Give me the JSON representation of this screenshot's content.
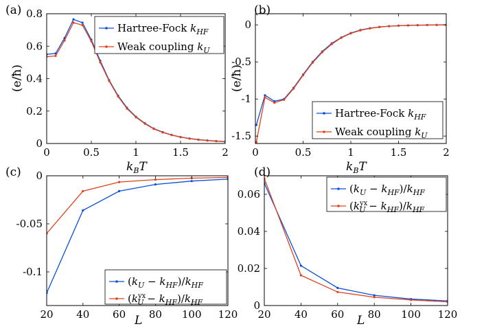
{
  "colors": {
    "blue": "#0a4fd6",
    "red": "#e0401a"
  },
  "chart_data": [
    {
      "id": "a",
      "type": "line",
      "panel_label": "(a)",
      "xlabel": "k_B T",
      "ylabel": "(e/ħ)",
      "xlim": [
        0,
        2
      ],
      "ylim": [
        0,
        0.8
      ],
      "xticks": [
        0,
        0.5,
        1,
        1.5,
        2
      ],
      "xtick_labels": [
        "0",
        "0.5",
        "1",
        "1.5",
        "2"
      ],
      "yticks": [
        0,
        0.2,
        0.4,
        0.6,
        0.8
      ],
      "ytick_labels": [
        "0",
        "0.2",
        "0.4",
        "0.6",
        "0.8"
      ],
      "legend_position": "top-right",
      "x": [
        0,
        0.1,
        0.2,
        0.3,
        0.4,
        0.5,
        0.6,
        0.7,
        0.8,
        0.9,
        1.0,
        1.1,
        1.2,
        1.3,
        1.4,
        1.5,
        1.6,
        1.7,
        1.8,
        1.9,
        2.0
      ],
      "series": [
        {
          "name": "Hartree-Fock k_HF",
          "color": "blue",
          "values": [
            0.55,
            0.555,
            0.65,
            0.765,
            0.745,
            0.64,
            0.51,
            0.39,
            0.295,
            0.22,
            0.165,
            0.125,
            0.092,
            0.07,
            0.053,
            0.04,
            0.031,
            0.024,
            0.019,
            0.015,
            0.012
          ]
        },
        {
          "name": "Weak coupling k_U",
          "color": "red",
          "values": [
            0.535,
            0.54,
            0.635,
            0.745,
            0.73,
            0.63,
            0.5,
            0.385,
            0.29,
            0.215,
            0.162,
            0.122,
            0.09,
            0.068,
            0.052,
            0.039,
            0.03,
            0.023,
            0.018,
            0.014,
            0.011
          ]
        }
      ]
    },
    {
      "id": "b",
      "type": "line",
      "panel_label": "(b)",
      "xlabel": "k_B T",
      "ylabel": "(e/ħ)",
      "xlim": [
        0,
        2
      ],
      "ylim": [
        -1.6,
        0.15
      ],
      "xticks": [
        0,
        0.5,
        1,
        1.5,
        2
      ],
      "xtick_labels": [
        "0",
        "0.5",
        "1",
        "1.5",
        "2"
      ],
      "yticks": [
        -1.5,
        -1,
        -0.5,
        0
      ],
      "ytick_labels": [
        "-1.5",
        "-1",
        "-0.5",
        "0"
      ],
      "legend_position": "bottom-right",
      "x": [
        0.01,
        0.1,
        0.2,
        0.3,
        0.4,
        0.5,
        0.6,
        0.7,
        0.8,
        0.9,
        1.0,
        1.1,
        1.2,
        1.3,
        1.4,
        1.5,
        1.6,
        1.7,
        1.8,
        1.9,
        2.0
      ],
      "series": [
        {
          "name": "Hartree-Fock k_HF",
          "color": "blue",
          "values": [
            -1.35,
            -0.95,
            -1.03,
            -1.0,
            -0.85,
            -0.67,
            -0.5,
            -0.36,
            -0.25,
            -0.17,
            -0.11,
            -0.07,
            -0.045,
            -0.028,
            -0.018,
            -0.011,
            -0.007,
            -0.004,
            -0.002,
            -0.001,
            0.0
          ]
        },
        {
          "name": "Weak coupling k_U",
          "color": "red",
          "values": [
            -1.58,
            -0.98,
            -1.05,
            -1.01,
            -0.86,
            -0.68,
            -0.51,
            -0.37,
            -0.26,
            -0.175,
            -0.115,
            -0.075,
            -0.048,
            -0.03,
            -0.019,
            -0.012,
            -0.008,
            -0.005,
            -0.003,
            -0.0015,
            0.0
          ]
        }
      ]
    },
    {
      "id": "c",
      "type": "line",
      "panel_label": "(c)",
      "xlabel": "L",
      "ylabel": "",
      "xlim": [
        20,
        120
      ],
      "ylim": [
        -0.135,
        0
      ],
      "xticks": [
        20,
        40,
        60,
        80,
        100,
        120
      ],
      "xtick_labels": [
        "20",
        "40",
        "60",
        "80",
        "100",
        "120"
      ],
      "yticks": [
        -0.1,
        -0.05,
        0
      ],
      "ytick_labels": [
        "-0.1",
        "-0.05",
        "0"
      ],
      "legend_position": "bottom-right",
      "x": [
        20,
        40,
        60,
        80,
        100,
        120
      ],
      "series": [
        {
          "name": "(k_U − k_HF)/k_HF",
          "color": "blue",
          "values": [
            -0.122,
            -0.036,
            -0.016,
            -0.009,
            -0.0055,
            -0.0035
          ]
        },
        {
          "name": "(k_U^yx − k_HF)/k_HF",
          "color": "red",
          "values": [
            -0.06,
            -0.016,
            -0.0065,
            -0.004,
            -0.0025,
            -0.0017
          ]
        }
      ]
    },
    {
      "id": "d",
      "type": "line",
      "panel_label": "(d)",
      "xlabel": "L",
      "ylabel": "",
      "xlim": [
        20,
        120
      ],
      "ylim": [
        0,
        0.07
      ],
      "xticks": [
        20,
        40,
        60,
        80,
        100,
        120
      ],
      "xtick_labels": [
        "20",
        "40",
        "60",
        "80",
        "100",
        "120"
      ],
      "yticks": [
        0,
        0.02,
        0.04,
        0.06
      ],
      "ytick_labels": [
        "0",
        "0.02",
        "0.04",
        "0.06"
      ],
      "legend_position": "top-right",
      "x": [
        20,
        40,
        60,
        80,
        100,
        120
      ],
      "series": [
        {
          "name": "(k_U − k_HF)/k_HF",
          "color": "blue",
          "values": [
            0.066,
            0.0215,
            0.0095,
            0.0055,
            0.0035,
            0.0025
          ]
        },
        {
          "name": "(k_U^yx − k_HF)/k_HF",
          "color": "red",
          "values": [
            0.0685,
            0.0163,
            0.0073,
            0.0045,
            0.003,
            0.002
          ]
        }
      ]
    }
  ]
}
